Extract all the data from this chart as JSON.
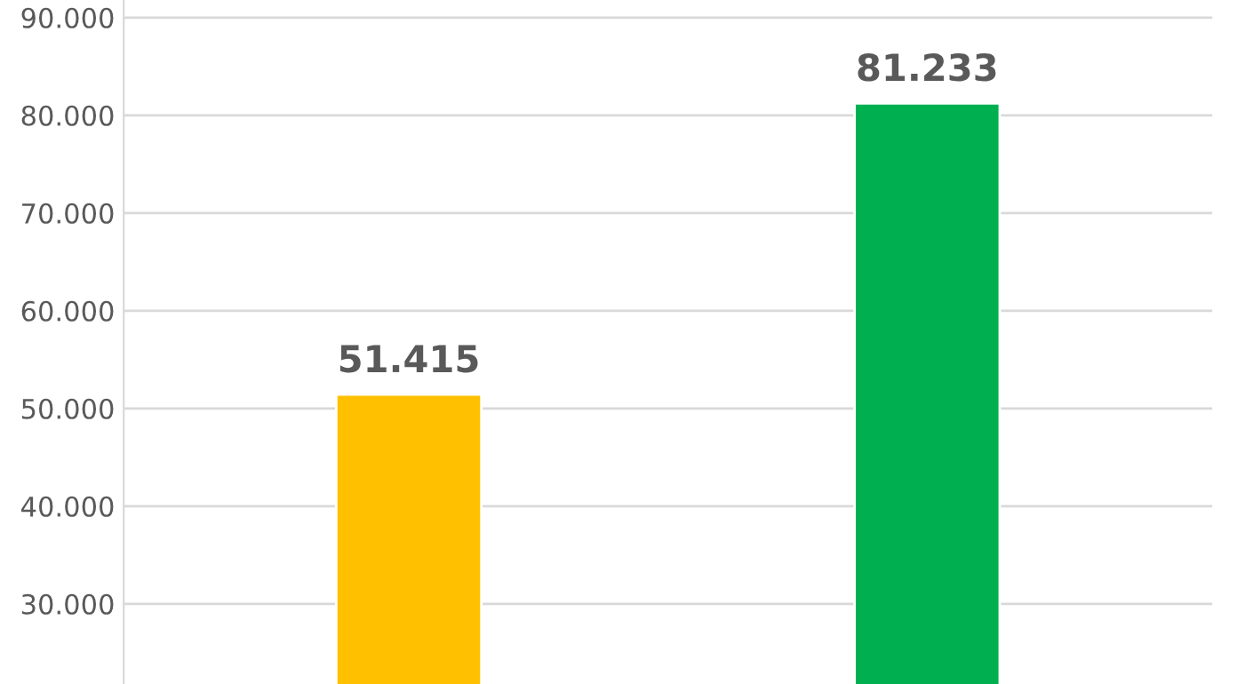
{
  "chart_data": {
    "type": "bar",
    "categories": [
      null,
      null
    ],
    "values": [
      51415,
      81233
    ],
    "colors": [
      "#ffc000",
      "#00b050"
    ],
    "value_labels": [
      "51.415",
      "81.233"
    ],
    "ylim": [
      21800,
      91800
    ],
    "yticks": [
      {
        "value": 30000,
        "label": "30.000"
      },
      {
        "value": 40000,
        "label": "40.000"
      },
      {
        "value": 50000,
        "label": "50.000"
      },
      {
        "value": 60000,
        "label": "60.000"
      },
      {
        "value": 70000,
        "label": "70.000"
      },
      {
        "value": 80000,
        "label": "80.000"
      },
      {
        "value": 90000,
        "label": "90.000"
      }
    ],
    "grid": "y"
  }
}
